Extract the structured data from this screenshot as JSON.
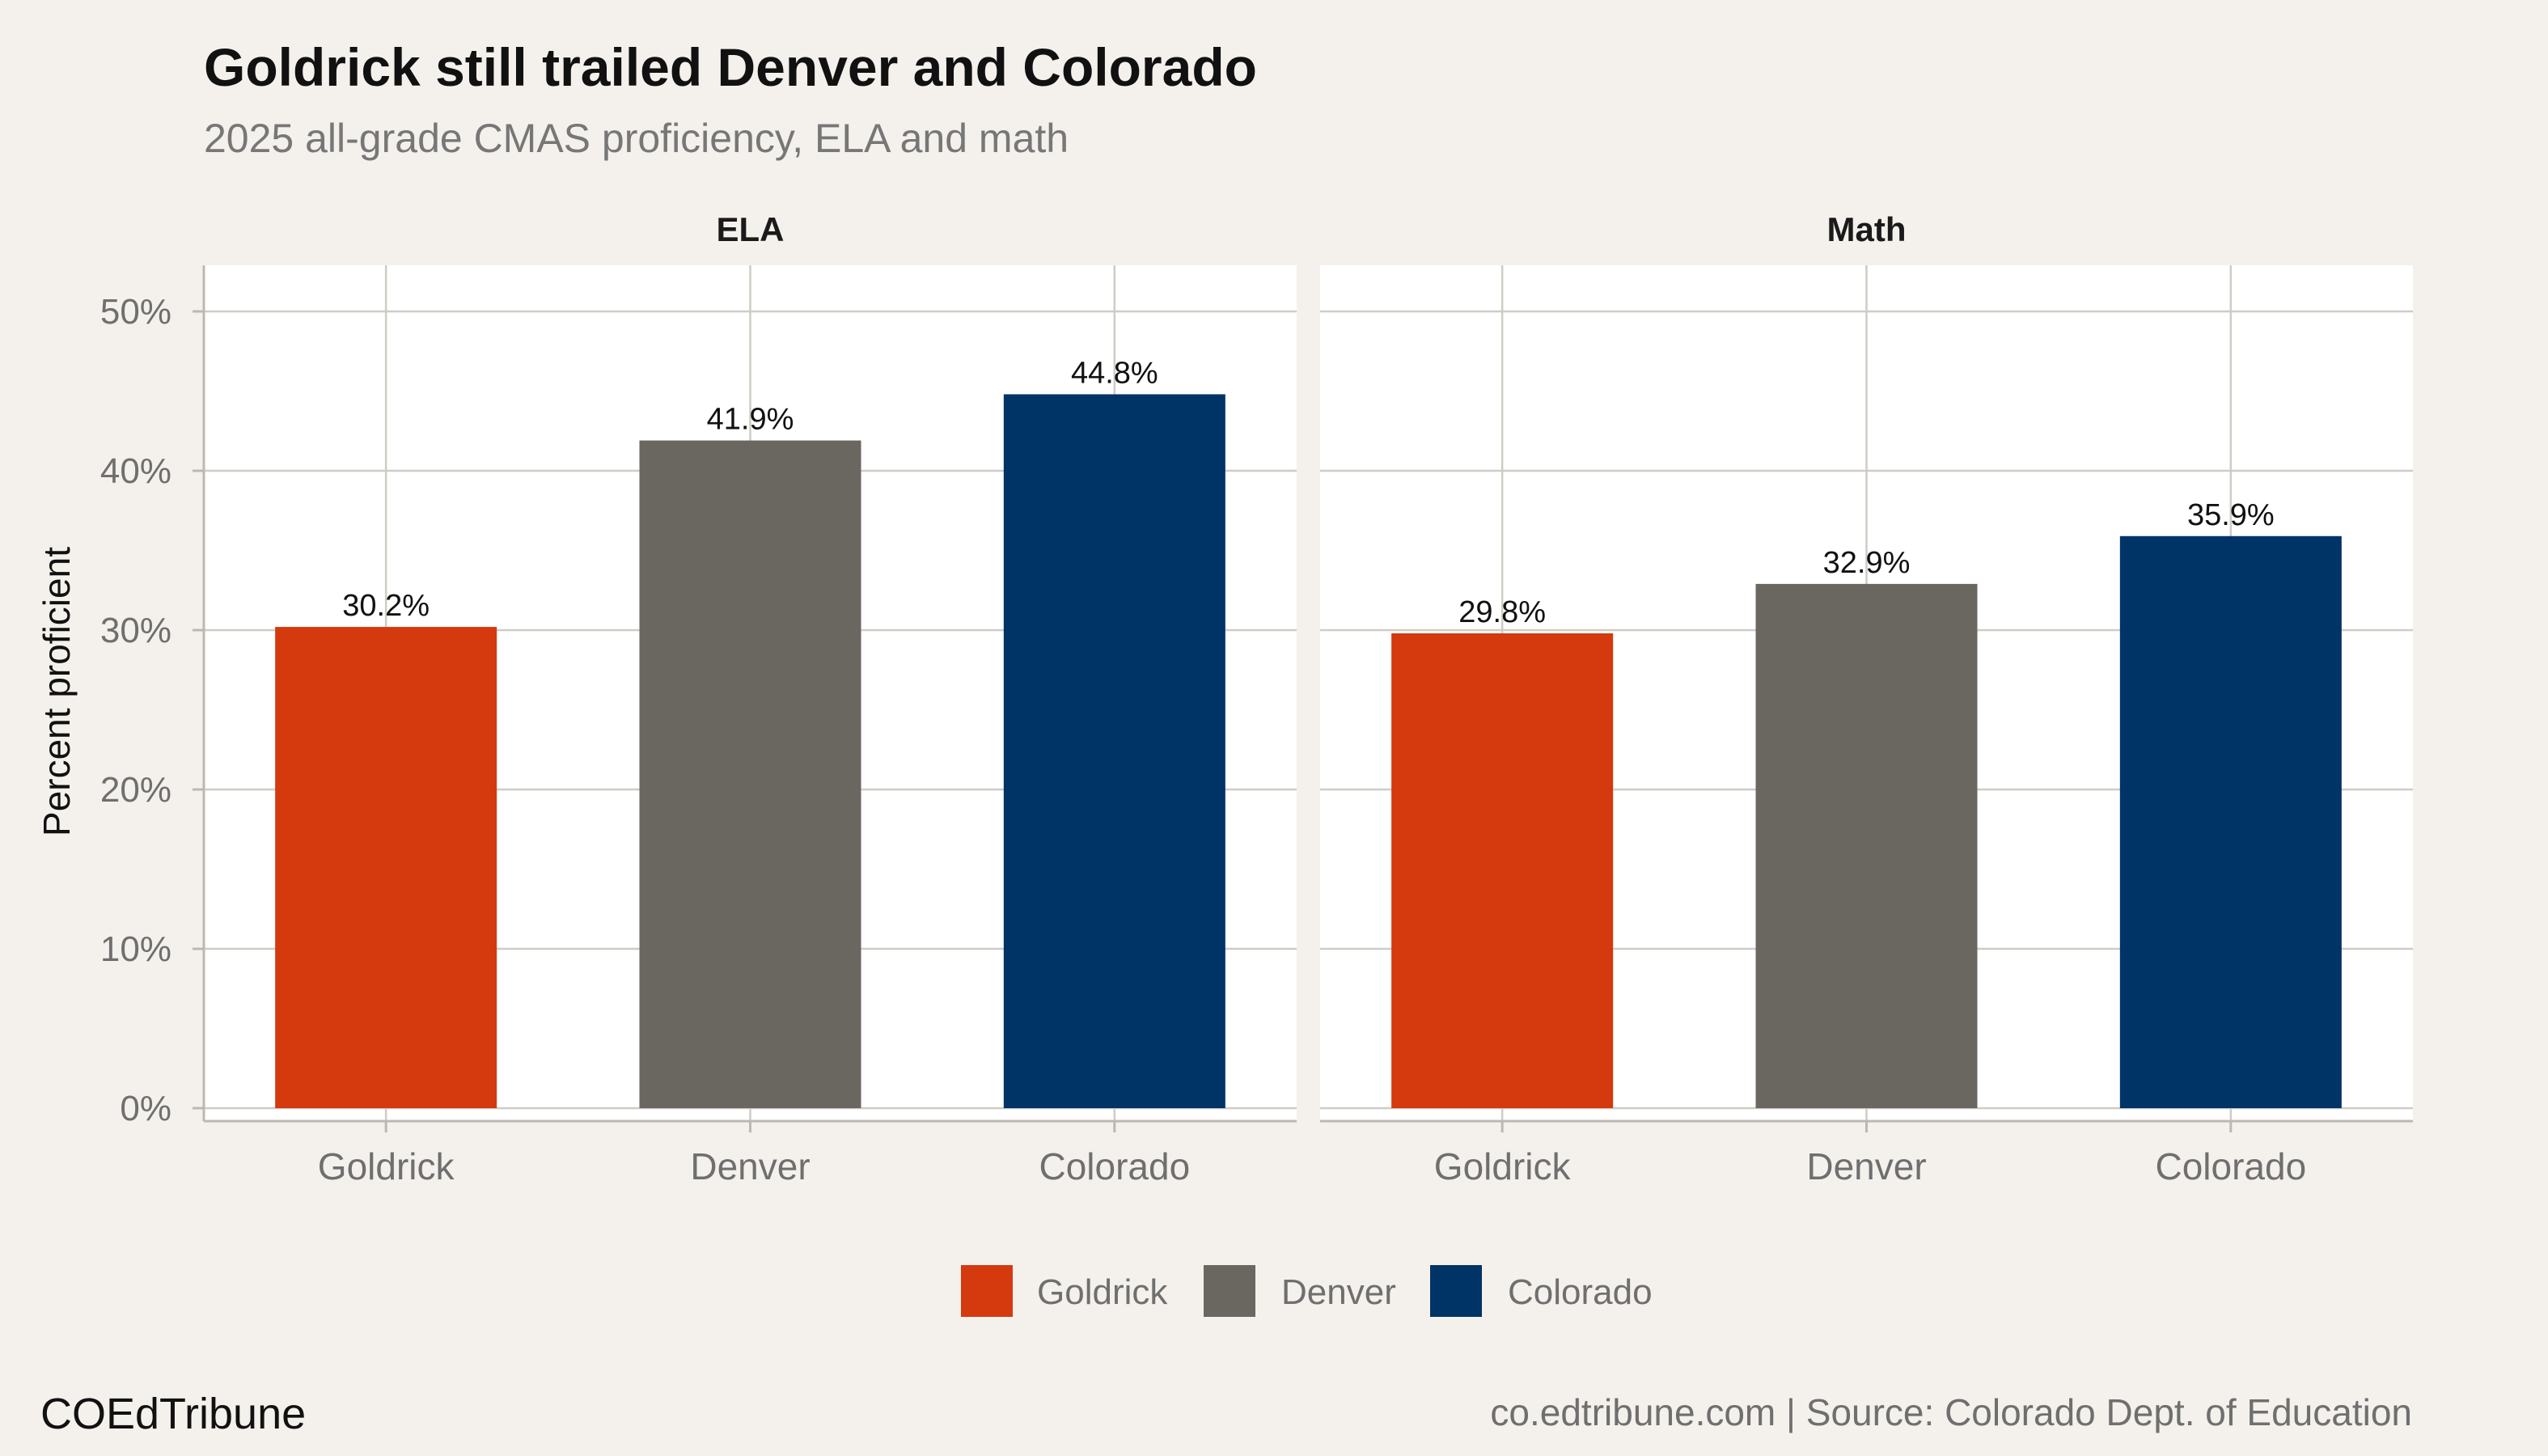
{
  "chart_data": {
    "type": "bar",
    "title": "Goldrick still trailed Denver and Colorado",
    "subtitle": "2025 all-grade CMAS proficiency, ELA and math",
    "ylabel": "Percent proficient",
    "ylim": [
      0,
      52
    ],
    "yticks": [
      0,
      10,
      20,
      30,
      40,
      50
    ],
    "ytick_labels": [
      "0%",
      "10%",
      "20%",
      "30%",
      "40%",
      "50%"
    ],
    "grid": true,
    "legend_position": "bottom",
    "categories": [
      "Goldrick",
      "Denver",
      "Colorado"
    ],
    "colors": {
      "Goldrick": "#d5390e",
      "Denver": "#6a6660",
      "Colorado": "#003366"
    },
    "panels": [
      {
        "name": "ELA",
        "values": [
          30.2,
          41.9,
          44.8
        ],
        "labels": [
          "30.2%",
          "41.9%",
          "44.8%"
        ]
      },
      {
        "name": "Math",
        "values": [
          29.8,
          32.9,
          35.9
        ],
        "labels": [
          "29.8%",
          "32.9%",
          "35.9%"
        ]
      }
    ],
    "legend": [
      "Goldrick",
      "Denver",
      "Colorado"
    ]
  },
  "footer": {
    "brand": "COEdTribune",
    "caption": "co.edtribune.com | Source: Colorado Dept. of Education"
  }
}
